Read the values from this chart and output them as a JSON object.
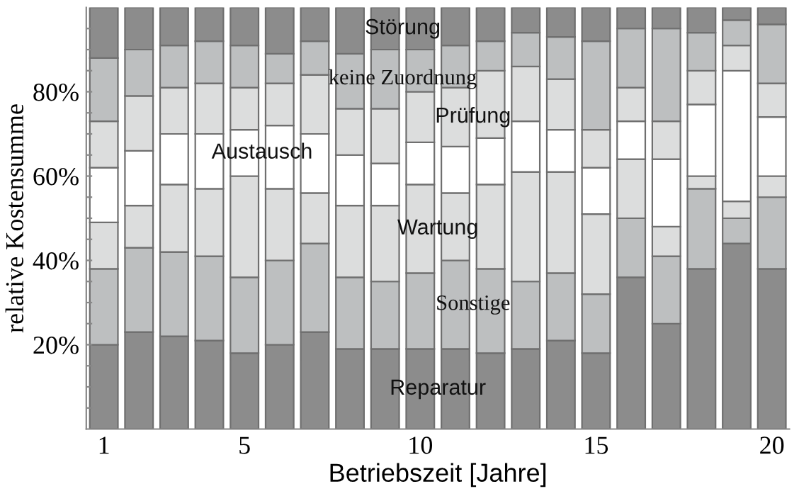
{
  "chart_data": {
    "type": "bar",
    "stacked": true,
    "x": [
      1,
      2,
      3,
      4,
      5,
      6,
      7,
      8,
      9,
      10,
      11,
      12,
      13,
      14,
      15,
      16,
      17,
      18,
      19,
      20
    ],
    "xlim": [
      0.5,
      20.5
    ],
    "xticks": [
      1,
      5,
      10,
      15,
      20
    ],
    "ylim": [
      0,
      100
    ],
    "yticks": [
      {
        "value": 5,
        "label": null
      },
      {
        "value": 10,
        "label": null
      },
      {
        "value": 15,
        "label": null
      },
      {
        "value": 20,
        "label": "20%"
      },
      {
        "value": 25,
        "label": null
      },
      {
        "value": 30,
        "label": null
      },
      {
        "value": 35,
        "label": null
      },
      {
        "value": 40,
        "label": "40%"
      },
      {
        "value": 45,
        "label": null
      },
      {
        "value": 50,
        "label": null
      },
      {
        "value": 55,
        "label": null
      },
      {
        "value": 60,
        "label": "60%"
      },
      {
        "value": 65,
        "label": null
      },
      {
        "value": 70,
        "label": null
      },
      {
        "value": 75,
        "label": null
      },
      {
        "value": 80,
        "label": "80%"
      },
      {
        "value": 85,
        "label": null
      },
      {
        "value": 90,
        "label": null
      },
      {
        "value": 95,
        "label": null
      }
    ],
    "xlabel": "Betriebszeit [Jahre]",
    "ylabel": "relative Kostensumme",
    "grid": false,
    "legend": false,
    "series": [
      {
        "name": "Reparatur",
        "color": "#8c8c8c",
        "values": [
          20,
          23,
          22,
          21,
          18,
          20,
          23,
          19,
          19,
          19,
          19,
          18,
          19,
          21,
          18,
          36,
          25,
          38,
          44,
          38
        ]
      },
      {
        "name": "Sonstige",
        "color": "#bdbfc0",
        "values": [
          18,
          20,
          20,
          20,
          18,
          20,
          21,
          17,
          16,
          18,
          21,
          20,
          16,
          16,
          14,
          14,
          16,
          19,
          6,
          17
        ]
      },
      {
        "name": "Wartung",
        "color": "#dcdddd",
        "values": [
          11,
          10,
          16,
          16,
          24,
          17,
          12,
          17,
          18,
          21,
          16,
          20,
          26,
          24,
          19,
          14,
          7,
          3,
          4,
          5
        ]
      },
      {
        "name": "Austausch",
        "color": "#ffffff",
        "values": [
          13,
          13,
          12,
          13,
          11,
          15,
          14,
          12,
          10,
          10,
          11,
          11,
          12,
          10,
          11,
          9,
          16,
          17,
          31,
          14
        ]
      },
      {
        "name": "Prüfung",
        "color": "#dcdddd",
        "values": [
          11,
          13,
          11,
          12,
          10,
          10,
          14,
          11,
          13,
          12,
          14,
          16,
          13,
          12,
          9,
          8,
          9,
          8,
          6,
          8
        ]
      },
      {
        "name": "keine Zuordnung",
        "color": "#bdbfc0",
        "values": [
          15,
          11,
          10,
          10,
          10,
          7,
          8,
          13,
          14,
          10,
          10,
          7,
          8,
          10,
          21,
          14,
          22,
          9,
          6,
          14
        ]
      },
      {
        "name": "Störung",
        "color": "#8c8c8c",
        "values": [
          12,
          10,
          9,
          8,
          9,
          11,
          8,
          11,
          10,
          10,
          9,
          8,
          6,
          7,
          8,
          5,
          5,
          6,
          3,
          4
        ]
      }
    ]
  }
}
